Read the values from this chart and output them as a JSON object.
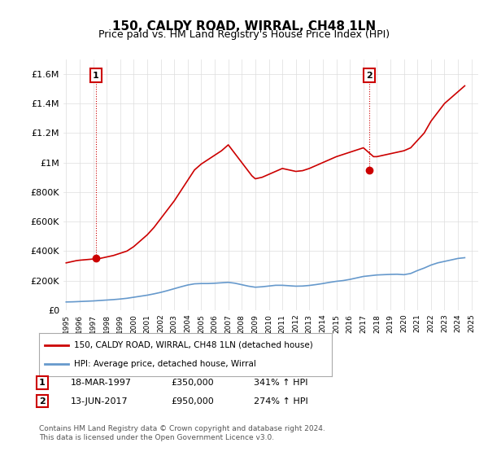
{
  "title": "150, CALDY ROAD, WIRRAL, CH48 1LN",
  "subtitle": "Price paid vs. HM Land Registry's House Price Index (HPI)",
  "ylim": [
    0,
    1700000
  ],
  "yticks": [
    0,
    200000,
    400000,
    600000,
    800000,
    1000000,
    1200000,
    1400000,
    1600000
  ],
  "ytick_labels": [
    "£0",
    "£200K",
    "£400K",
    "£600K",
    "£800K",
    "£1M",
    "£1.2M",
    "£1.4M",
    "£1.6M"
  ],
  "line_color_house": "#cc0000",
  "line_color_hpi": "#6699cc",
  "marker_color_house": "#cc0000",
  "grid_color": "#dddddd",
  "background_color": "#ffffff",
  "annotation_box_color": "#cc0000",
  "sale1_label": "1",
  "sale1_date": "18-MAR-1997",
  "sale1_price": 350000,
  "sale1_hpi": "341% ↑ HPI",
  "sale1_x": 1997.21,
  "sale2_label": "2",
  "sale2_date": "13-JUN-2017",
  "sale2_price": 950000,
  "sale2_hpi": "274% ↑ HPI",
  "sale2_x": 2017.45,
  "legend_line1": "150, CALDY ROAD, WIRRAL, CH48 1LN (detached house)",
  "legend_line2": "HPI: Average price, detached house, Wirral",
  "footer1": "Contains HM Land Registry data © Crown copyright and database right 2024.",
  "footer2": "This data is licensed under the Open Government Licence v3.0.",
  "hpi_years": [
    1995,
    1995.5,
    1996,
    1996.5,
    1997,
    1997.5,
    1998,
    1998.5,
    1999,
    1999.5,
    2000,
    2000.5,
    2001,
    2001.5,
    2002,
    2002.5,
    2003,
    2003.5,
    2004,
    2004.5,
    2005,
    2005.5,
    2006,
    2006.5,
    2007,
    2007.5,
    2008,
    2008.5,
    2009,
    2009.5,
    2010,
    2010.5,
    2011,
    2011.5,
    2012,
    2012.5,
    2013,
    2013.5,
    2014,
    2014.5,
    2015,
    2015.5,
    2016,
    2016.5,
    2017,
    2017.5,
    2018,
    2018.5,
    2019,
    2019.5,
    2020,
    2020.5,
    2021,
    2021.5,
    2022,
    2022.5,
    2023,
    2023.5,
    2024,
    2024.5
  ],
  "hpi_values": [
    55000,
    56000,
    58000,
    60000,
    62000,
    65000,
    68000,
    71000,
    75000,
    80000,
    87000,
    94000,
    101000,
    110000,
    120000,
    132000,
    145000,
    158000,
    170000,
    178000,
    180000,
    180000,
    182000,
    185000,
    188000,
    182000,
    172000,
    162000,
    155000,
    158000,
    163000,
    168000,
    168000,
    165000,
    162000,
    163000,
    167000,
    173000,
    180000,
    188000,
    195000,
    200000,
    208000,
    218000,
    228000,
    233000,
    238000,
    240000,
    242000,
    243000,
    240000,
    248000,
    268000,
    285000,
    305000,
    320000,
    330000,
    340000,
    350000,
    355000
  ],
  "house_years": [
    1995,
    1995.25,
    1995.5,
    1995.75,
    1996,
    1996.25,
    1996.5,
    1996.75,
    1997,
    1997.25,
    1997.5,
    1997.75,
    1998,
    1998.5,
    1999,
    1999.5,
    2000,
    2000.5,
    2001,
    2001.5,
    2002,
    2002.5,
    2003,
    2003.5,
    2004,
    2004.5,
    2005,
    2005.5,
    2006,
    2006.5,
    2007,
    2007.25,
    2007.5,
    2007.75,
    2008,
    2008.25,
    2008.5,
    2008.75,
    2009,
    2009.5,
    2010,
    2010.5,
    2011,
    2011.5,
    2012,
    2012.5,
    2013,
    2013.5,
    2014,
    2014.5,
    2015,
    2015.5,
    2016,
    2016.5,
    2017,
    2017.25,
    2017.5,
    2017.75,
    2018,
    2018.5,
    2019,
    2019.5,
    2020,
    2020.5,
    2021,
    2021.5,
    2022,
    2022.25,
    2022.5,
    2022.75,
    2023,
    2023.25,
    2023.5,
    2023.75,
    2024,
    2024.25,
    2024.5
  ],
  "house_values": [
    320000,
    325000,
    330000,
    335000,
    338000,
    340000,
    342000,
    344000,
    346000,
    348000,
    350000,
    355000,
    360000,
    370000,
    385000,
    400000,
    430000,
    470000,
    510000,
    560000,
    620000,
    680000,
    740000,
    810000,
    880000,
    950000,
    990000,
    1020000,
    1050000,
    1080000,
    1120000,
    1090000,
    1060000,
    1030000,
    1000000,
    970000,
    940000,
    910000,
    890000,
    900000,
    920000,
    940000,
    960000,
    950000,
    940000,
    945000,
    960000,
    980000,
    1000000,
    1020000,
    1040000,
    1055000,
    1070000,
    1085000,
    1100000,
    1080000,
    1060000,
    1040000,
    1040000,
    1050000,
    1060000,
    1070000,
    1080000,
    1100000,
    1150000,
    1200000,
    1280000,
    1310000,
    1340000,
    1370000,
    1400000,
    1420000,
    1440000,
    1460000,
    1480000,
    1500000,
    1520000
  ]
}
